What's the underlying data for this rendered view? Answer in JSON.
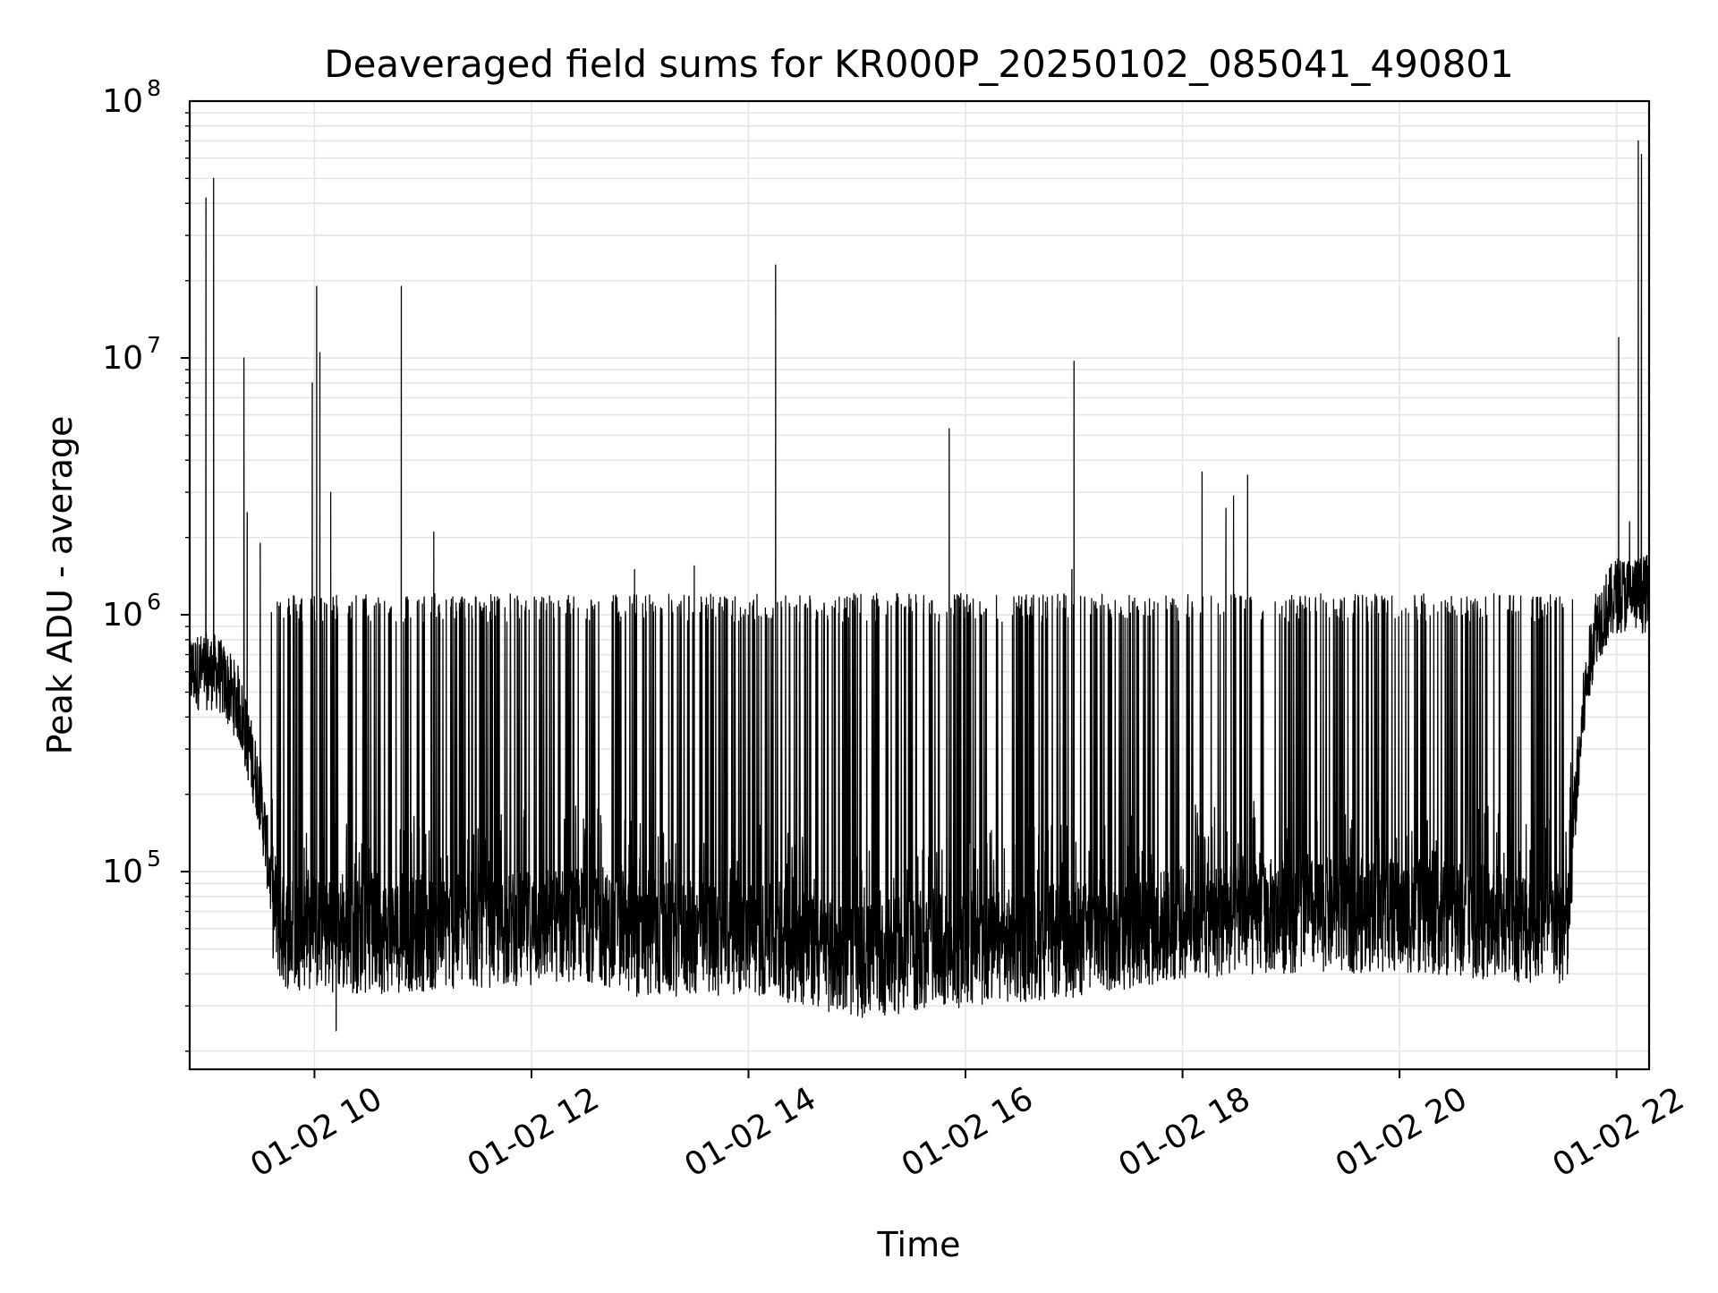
{
  "chart_data": {
    "type": "line",
    "title": "Deaveraged field sums for KR000P_20250102_085041_490801",
    "xlabel": "Time",
    "ylabel": "Peak ADU - average",
    "yscale": "log",
    "ylim": [
      17000,
      100000000
    ],
    "xlim_hours": [
      8.85,
      22.3
    ],
    "grid": true,
    "legend": "none",
    "line_color": "#000000",
    "grid_color": "#e5e5e5",
    "x_ticks": [
      {
        "label": "01-02 10",
        "hour": 10
      },
      {
        "label": "01-02 12",
        "hour": 12
      },
      {
        "label": "01-02 14",
        "hour": 14
      },
      {
        "label": "01-02 16",
        "hour": 16
      },
      {
        "label": "01-02 18",
        "hour": 18
      },
      {
        "label": "01-02 20",
        "hour": 20
      },
      {
        "label": "01-02 22",
        "hour": 22
      }
    ],
    "y_ticks": [
      {
        "label": "10",
        "exp": "5",
        "value": 100000
      },
      {
        "label": "10",
        "exp": "6",
        "value": 1000000
      },
      {
        "label": "10",
        "exp": "7",
        "value": 10000000
      },
      {
        "label": "10",
        "exp": "8",
        "value": 100000000
      }
    ],
    "series": [
      {
        "baseline_profile": [
          [
            8.85,
            600000
          ],
          [
            9.1,
            600000
          ],
          [
            9.3,
            450000
          ],
          [
            9.5,
            200000
          ],
          [
            9.6,
            90000
          ],
          [
            9.7,
            65000
          ],
          [
            10.5,
            62000
          ],
          [
            11.5,
            65000
          ],
          [
            12.5,
            70000
          ],
          [
            13.0,
            60000
          ],
          [
            14.0,
            62000
          ],
          [
            15.0,
            50000
          ],
          [
            16.0,
            55000
          ],
          [
            17.0,
            60000
          ],
          [
            18.0,
            70000
          ],
          [
            19.0,
            75000
          ],
          [
            20.0,
            75000
          ],
          [
            21.0,
            70000
          ],
          [
            21.55,
            65000
          ],
          [
            21.6,
            150000
          ],
          [
            21.7,
            450000
          ],
          [
            21.8,
            900000
          ],
          [
            22.0,
            1200000
          ],
          [
            22.3,
            1200000
          ]
        ],
        "burst_level": 1100000,
        "burst_window_hours": [
          9.6,
          21.6
        ],
        "spikes": [
          {
            "x": 9.07,
            "y": 50000000
          },
          {
            "x": 9.0,
            "y": 42000000
          },
          {
            "x": 9.35,
            "y": 10000000
          },
          {
            "x": 9.38,
            "y": 2500000
          },
          {
            "x": 9.5,
            "y": 1900000
          },
          {
            "x": 10.02,
            "y": 19000000
          },
          {
            "x": 10.05,
            "y": 10500000
          },
          {
            "x": 9.98,
            "y": 8000000
          },
          {
            "x": 10.15,
            "y": 3000000
          },
          {
            "x": 10.8,
            "y": 19000000
          },
          {
            "x": 11.1,
            "y": 2100000
          },
          {
            "x": 12.95,
            "y": 1500000
          },
          {
            "x": 13.5,
            "y": 1550000
          },
          {
            "x": 14.25,
            "y": 23000000
          },
          {
            "x": 15.85,
            "y": 5300000
          },
          {
            "x": 17.0,
            "y": 9700000
          },
          {
            "x": 16.98,
            "y": 1500000
          },
          {
            "x": 18.18,
            "y": 3600000
          },
          {
            "x": 18.4,
            "y": 2600000
          },
          {
            "x": 18.47,
            "y": 2900000
          },
          {
            "x": 18.6,
            "y": 3500000
          },
          {
            "x": 22.02,
            "y": 12000000
          },
          {
            "x": 22.12,
            "y": 2300000
          },
          {
            "x": 22.2,
            "y": 70000000
          },
          {
            "x": 22.23,
            "y": 62000000
          },
          {
            "x": 22.28,
            "y": 1700000
          }
        ],
        "min_dip": {
          "x": 10.2,
          "y": 24000
        }
      }
    ]
  }
}
